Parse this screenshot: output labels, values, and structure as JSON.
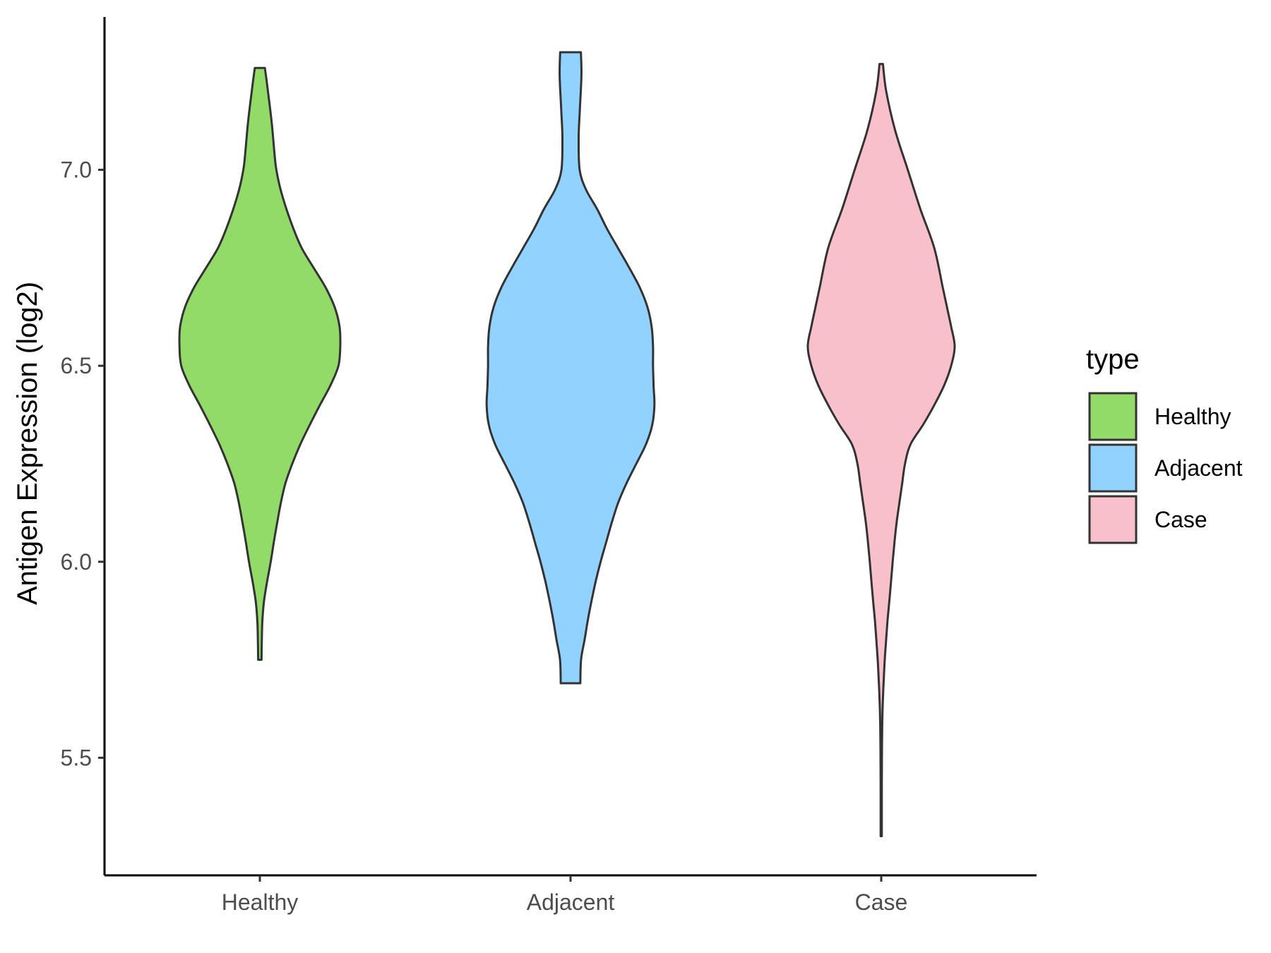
{
  "chart_data": {
    "type": "violin",
    "title": "",
    "xlabel": "",
    "ylabel": "Antigen Expression (log2)",
    "ylim": [
      5.2,
      7.39
    ],
    "y_ticks": [
      "5.5",
      "6.0",
      "6.5",
      "7.0"
    ],
    "y_tick_values": [
      5.5,
      6.0,
      6.5,
      7.0
    ],
    "categories": [
      "Healthy",
      "Adjacent",
      "Case"
    ],
    "grid": false,
    "legend": {
      "title": "type",
      "position": "right",
      "entries": [
        "Healthy",
        "Adjacent",
        "Case"
      ]
    },
    "series": [
      {
        "name": "Healthy",
        "color": "#93DB69",
        "min": 5.75,
        "max": 7.26,
        "profile": [
          [
            7.26,
            0.036
          ],
          [
            7.2,
            0.058
          ],
          [
            7.12,
            0.085
          ],
          [
            7.04,
            0.105
          ],
          [
            7.0,
            0.118
          ],
          [
            6.95,
            0.148
          ],
          [
            6.9,
            0.19
          ],
          [
            6.85,
            0.24
          ],
          [
            6.8,
            0.3
          ],
          [
            6.75,
            0.385
          ],
          [
            6.7,
            0.47
          ],
          [
            6.65,
            0.535
          ],
          [
            6.6,
            0.57
          ],
          [
            6.55,
            0.575
          ],
          [
            6.5,
            0.562
          ],
          [
            6.45,
            0.505
          ],
          [
            6.4,
            0.43
          ],
          [
            6.35,
            0.358
          ],
          [
            6.3,
            0.29
          ],
          [
            6.25,
            0.232
          ],
          [
            6.2,
            0.183
          ],
          [
            6.15,
            0.15
          ],
          [
            6.1,
            0.124
          ],
          [
            6.05,
            0.1
          ],
          [
            6.0,
            0.078
          ],
          [
            5.95,
            0.052
          ],
          [
            5.9,
            0.03
          ],
          [
            5.85,
            0.018
          ],
          [
            5.8,
            0.014
          ],
          [
            5.75,
            0.012
          ]
        ]
      },
      {
        "name": "Adjacent",
        "color": "#92D2FF",
        "min": 5.69,
        "max": 7.3,
        "profile": [
          [
            7.3,
            0.074
          ],
          [
            7.24,
            0.078
          ],
          [
            7.15,
            0.066
          ],
          [
            7.08,
            0.058
          ],
          [
            7.0,
            0.065
          ],
          [
            6.95,
            0.11
          ],
          [
            6.9,
            0.19
          ],
          [
            6.85,
            0.26
          ],
          [
            6.8,
            0.34
          ],
          [
            6.75,
            0.42
          ],
          [
            6.7,
            0.495
          ],
          [
            6.65,
            0.55
          ],
          [
            6.6,
            0.58
          ],
          [
            6.55,
            0.59
          ],
          [
            6.5,
            0.59
          ],
          [
            6.45,
            0.594
          ],
          [
            6.4,
            0.6
          ],
          [
            6.35,
            0.585
          ],
          [
            6.3,
            0.54
          ],
          [
            6.25,
            0.47
          ],
          [
            6.2,
            0.4
          ],
          [
            6.15,
            0.34
          ],
          [
            6.1,
            0.295
          ],
          [
            6.05,
            0.255
          ],
          [
            6.0,
            0.215
          ],
          [
            5.95,
            0.18
          ],
          [
            5.9,
            0.15
          ],
          [
            5.85,
            0.123
          ],
          [
            5.8,
            0.1
          ],
          [
            5.75,
            0.075
          ],
          [
            5.69,
            0.07
          ]
        ]
      },
      {
        "name": "Case",
        "color": "#F7C0CB",
        "min": 5.3,
        "max": 7.27,
        "profile": [
          [
            7.27,
            0.012
          ],
          [
            7.2,
            0.036
          ],
          [
            7.1,
            0.1
          ],
          [
            7.0,
            0.19
          ],
          [
            6.9,
            0.28
          ],
          [
            6.8,
            0.38
          ],
          [
            6.7,
            0.44
          ],
          [
            6.65,
            0.47
          ],
          [
            6.6,
            0.5
          ],
          [
            6.55,
            0.525
          ],
          [
            6.5,
            0.5
          ],
          [
            6.45,
            0.45
          ],
          [
            6.4,
            0.38
          ],
          [
            6.35,
            0.3
          ],
          [
            6.3,
            0.21
          ],
          [
            6.25,
            0.17
          ],
          [
            6.2,
            0.15
          ],
          [
            6.15,
            0.13
          ],
          [
            6.1,
            0.11
          ],
          [
            6.05,
            0.095
          ],
          [
            6.0,
            0.082
          ],
          [
            5.95,
            0.07
          ],
          [
            5.9,
            0.058
          ],
          [
            5.85,
            0.045
          ],
          [
            5.8,
            0.035
          ],
          [
            5.75,
            0.025
          ],
          [
            5.7,
            0.018
          ],
          [
            5.65,
            0.012
          ],
          [
            5.6,
            0.008
          ],
          [
            5.55,
            0.006
          ],
          [
            5.5,
            0.005
          ],
          [
            5.4,
            0.004
          ],
          [
            5.3,
            0.004
          ]
        ]
      }
    ]
  }
}
